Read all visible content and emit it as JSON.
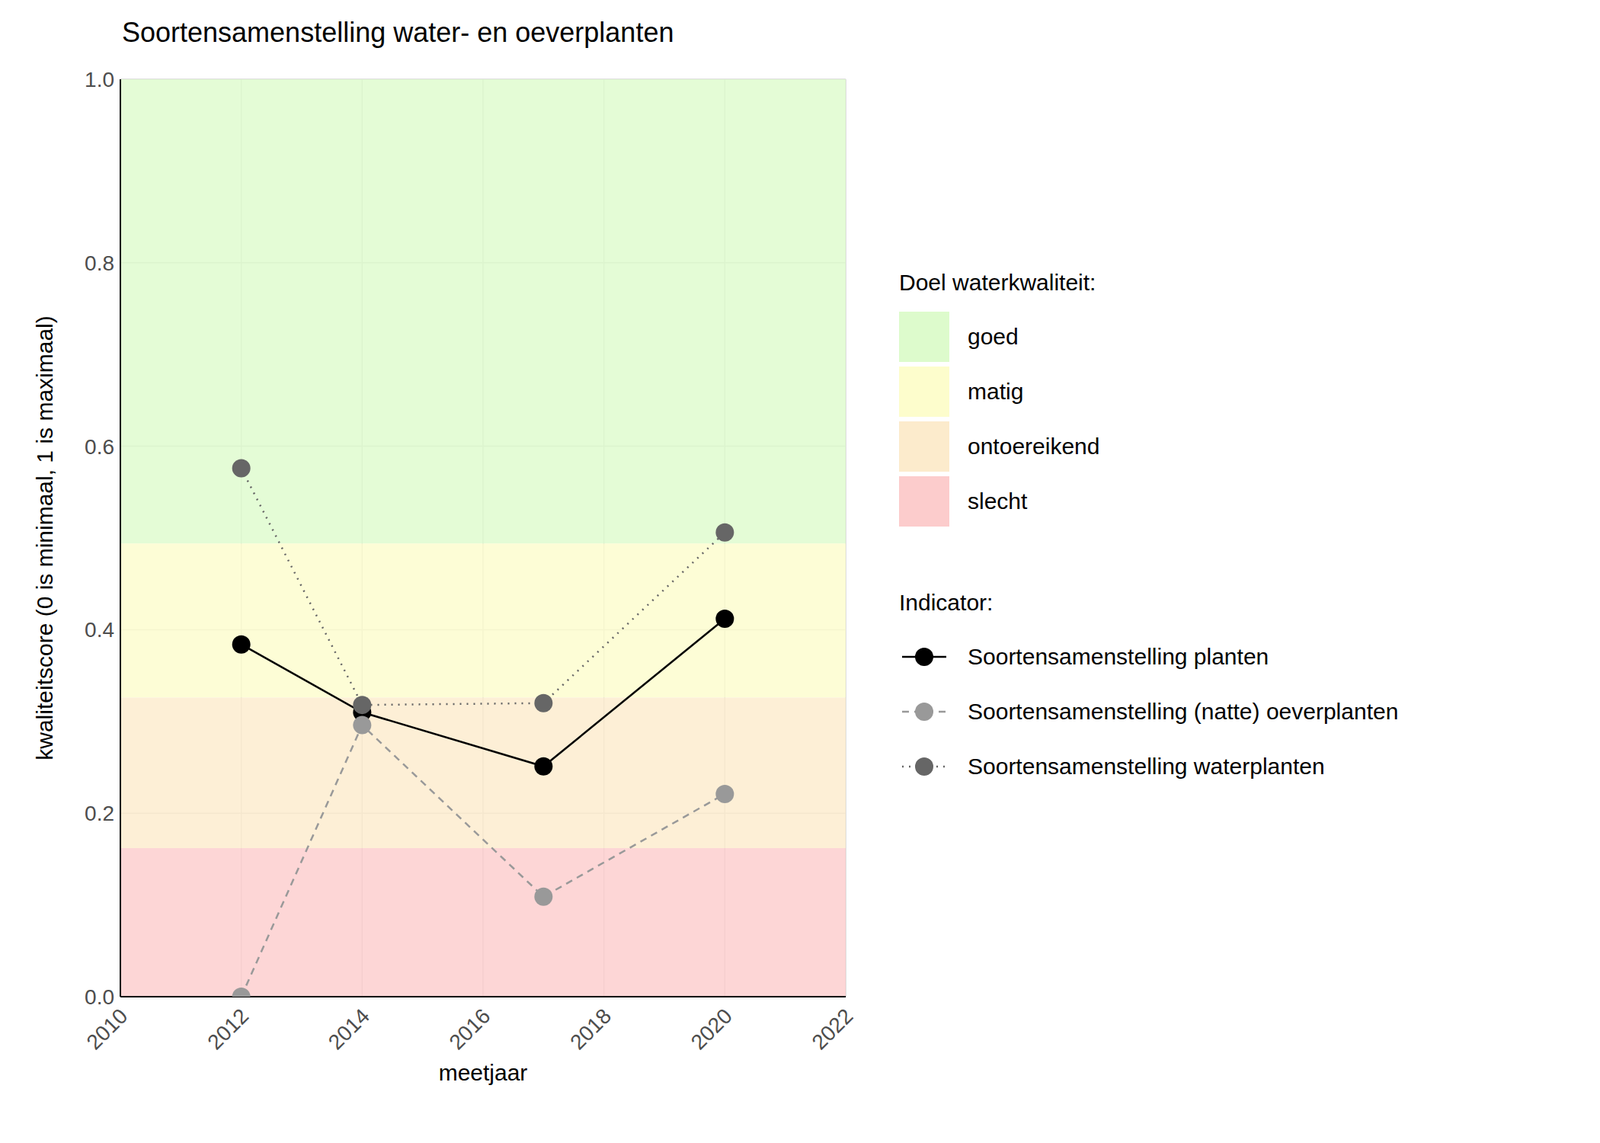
{
  "chart_data": {
    "type": "line",
    "title": "Soortensamenstelling water- en oeverplanten",
    "x_label": "meetjaar",
    "y_label": "kwaliteitscore (0 is minimaal, 1 is maximaal)",
    "x": [
      2012,
      2014,
      2017,
      2020
    ],
    "series": [
      {
        "name": "Soortensamenstelling planten",
        "color": "#000000",
        "line_style": "solid",
        "marker": "circle",
        "values": [
          0.384,
          0.31,
          0.251,
          0.412
        ]
      },
      {
        "name": "Soortensamenstelling (natte) oeverplanten",
        "color": "#999999",
        "line_style": "dashed",
        "marker": "circle",
        "values": [
          0,
          0.296,
          0.109,
          0.221
        ]
      },
      {
        "name": "Soortensamenstelling waterplanten",
        "color": "#666666",
        "line_style": "dotted",
        "marker": "circle",
        "values": [
          0.576,
          0.318,
          0.32,
          0.506
        ]
      }
    ],
    "xlim": [
      2010,
      2022
    ],
    "xticks": [
      2010,
      2012,
      2014,
      2016,
      2018,
      2020,
      2022
    ],
    "ylim": [
      0,
      1
    ],
    "yticks": [
      {
        "value": 0,
        "label": "0.0"
      },
      0.2,
      0.4,
      0.6,
      0.8,
      {
        "value": 1,
        "label": "1.0"
      }
    ],
    "grid": true,
    "bands_title": "Doel waterkwaliteit:",
    "bands": [
      {
        "name": "goed",
        "from": 0.494,
        "to": 1,
        "color": "#ddfbcc"
      },
      {
        "name": "matig",
        "from": 0.326,
        "to": 0.494,
        "color": "#fdfdcc"
      },
      {
        "name": "ontoereikend",
        "from": 0.162,
        "to": 0.326,
        "color": "#fcebcc"
      },
      {
        "name": "slecht",
        "from": 0,
        "to": 0.162,
        "color": "#fccccc"
      }
    ],
    "legend_title": "Indicator:",
    "legend": "right"
  }
}
